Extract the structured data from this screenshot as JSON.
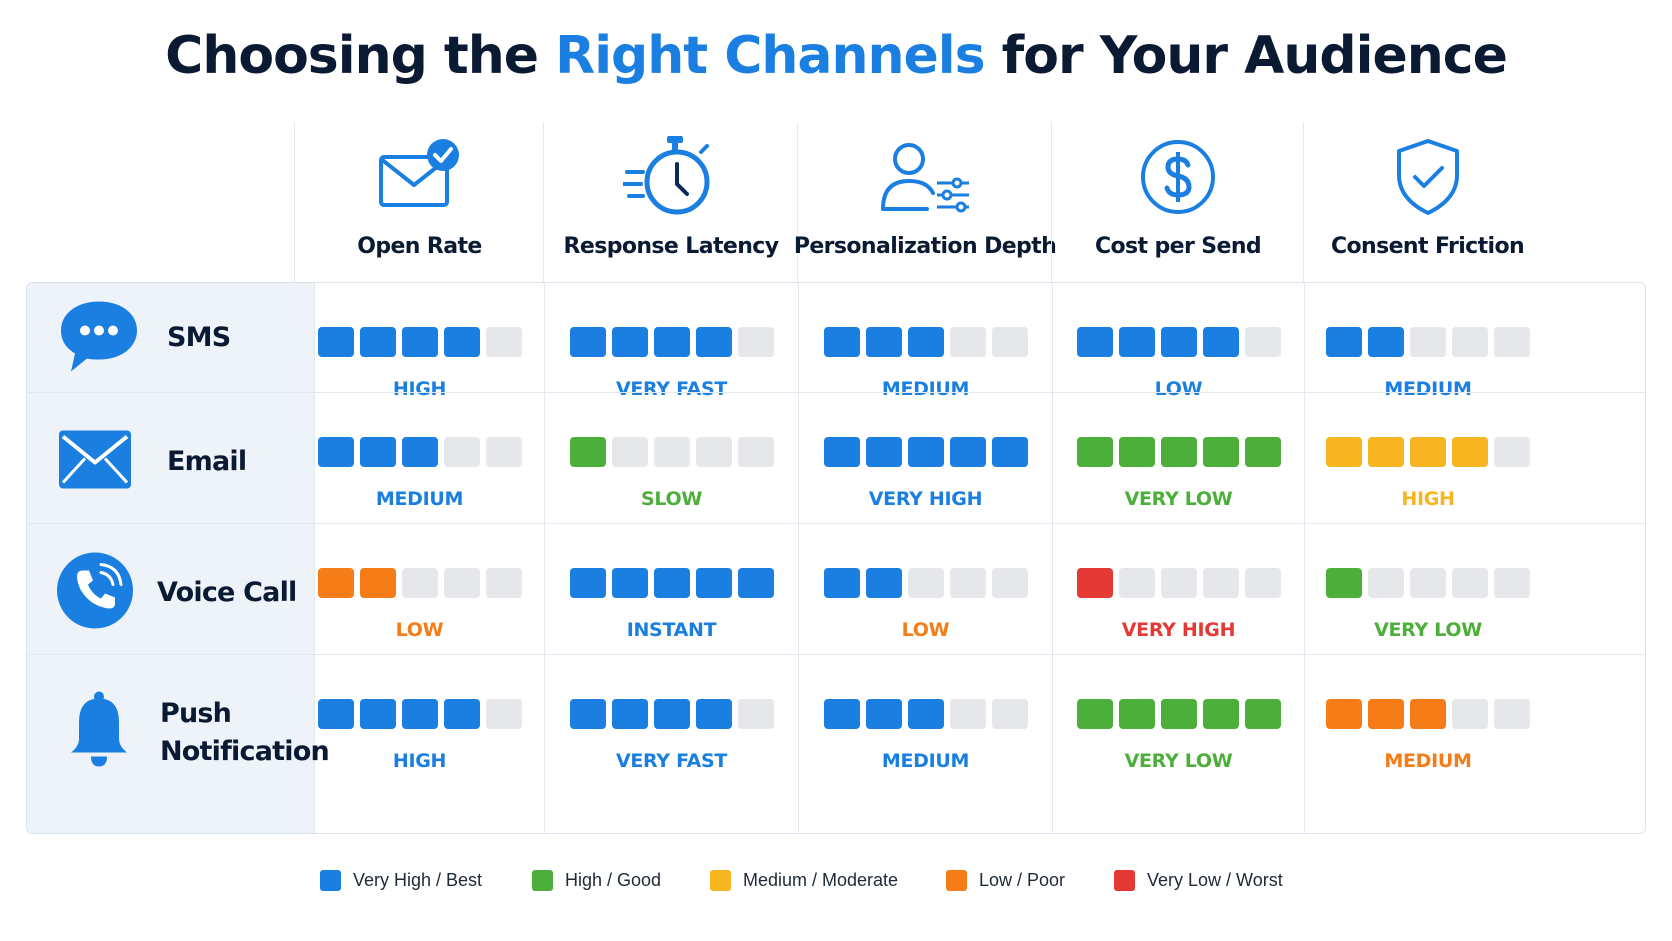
{
  "title": {
    "part1": "Choosing the ",
    "highlight": "Right Channels",
    "part2": " for Your Audience"
  },
  "colors": {
    "blue": "#1a7fe0",
    "green": "#4caf3a",
    "yellow": "#f8b522",
    "orange": "#f57c17",
    "red": "#e53935",
    "empty": "#e5e7eb",
    "text_dark": "#0b1a33"
  },
  "columns": [
    {
      "label": "Open Rate",
      "icon": "email-check-icon"
    },
    {
      "label": "Response Latency",
      "icon": "stopwatch-speed-icon"
    },
    {
      "label": "Personalization Depth",
      "icon": "user-sliders-icon"
    },
    {
      "label": "Cost per Send",
      "icon": "dollar-circle-icon"
    },
    {
      "label": "Consent Friction",
      "icon": "shield-check-icon"
    }
  ],
  "rows": [
    {
      "name": "SMS",
      "icon": "chat-bubble-icon",
      "cells": [
        {
          "rating": "HIGH",
          "filled": 4,
          "color": "blue"
        },
        {
          "rating": "VERY FAST",
          "filled": 4,
          "color": "blue"
        },
        {
          "rating": "MEDIUM",
          "filled": 3,
          "color": "blue"
        },
        {
          "rating": "LOW",
          "filled": 4,
          "color": "blue"
        },
        {
          "rating": "MEDIUM",
          "filled": 2,
          "color": "blue"
        }
      ]
    },
    {
      "name": "Email",
      "icon": "envelope-icon",
      "cells": [
        {
          "rating": "MEDIUM",
          "filled": 3,
          "color": "blue"
        },
        {
          "rating": "SLOW",
          "filled": 1,
          "color": "green"
        },
        {
          "rating": "VERY HIGH",
          "filled": 5,
          "color": "blue"
        },
        {
          "rating": "VERY LOW",
          "filled": 5,
          "color": "green"
        },
        {
          "rating": "HIGH",
          "filled": 4,
          "color": "yellow"
        }
      ]
    },
    {
      "name": "Voice Call",
      "icon": "phone-icon",
      "cells": [
        {
          "rating": "LOW",
          "filled": 2,
          "color": "orange"
        },
        {
          "rating": "INSTANT",
          "filled": 5,
          "color": "blue"
        },
        {
          "rating": "LOW",
          "filled": 2,
          "color": "blue",
          "label_color": "orange"
        },
        {
          "rating": "VERY HIGH",
          "filled": 1,
          "color": "red"
        },
        {
          "rating": "VERY LOW",
          "filled": 1,
          "color": "green"
        }
      ]
    },
    {
      "name": "Push Notification",
      "icon": "bell-icon",
      "cells": [
        {
          "rating": "HIGH",
          "filled": 4,
          "color": "blue"
        },
        {
          "rating": "VERY FAST",
          "filled": 4,
          "color": "blue"
        },
        {
          "rating": "MEDIUM",
          "filled": 3,
          "color": "blue"
        },
        {
          "rating": "VERY LOW",
          "filled": 5,
          "color": "green"
        },
        {
          "rating": "MEDIUM",
          "filled": 3,
          "color": "orange"
        }
      ]
    }
  ],
  "legend": [
    {
      "label": "Very High / Best",
      "color": "blue"
    },
    {
      "label": "High / Good",
      "color": "green"
    },
    {
      "label": "Medium / Moderate",
      "color": "yellow"
    },
    {
      "label": "Low / Poor",
      "color": "orange"
    },
    {
      "label": "Very Low / Worst",
      "color": "red"
    }
  ]
}
